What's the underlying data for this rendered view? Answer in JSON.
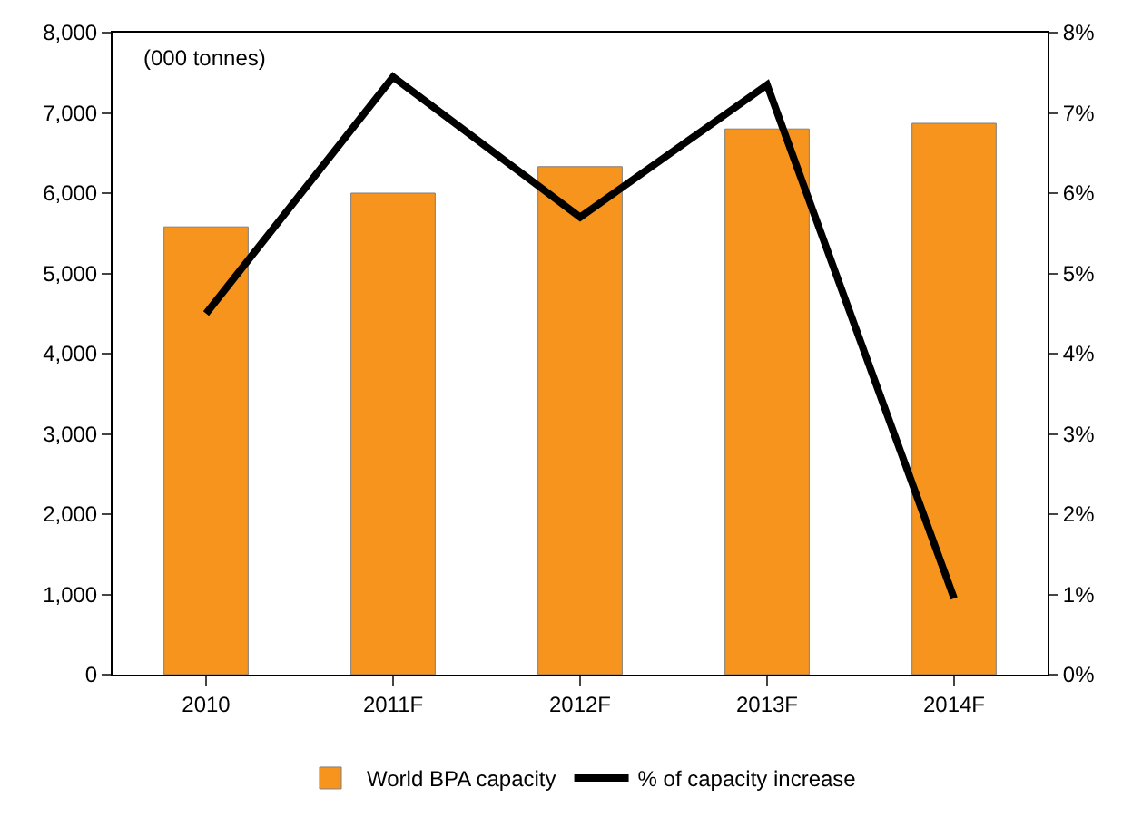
{
  "chart_data": {
    "type": "bar",
    "categories": [
      "2010",
      "2011F",
      "2012F",
      "2013F",
      "2014F"
    ],
    "series": [
      {
        "name": "World BPA capacity",
        "color": "#f7941d",
        "values": [
          5580,
          6000,
          6330,
          6800,
          6870
        ]
      },
      {
        "name": "% of capacity increase",
        "type": "line",
        "axis": "y2",
        "color": "#000000",
        "values": [
          4.5,
          7.45,
          5.7,
          7.35,
          0.95
        ]
      }
    ],
    "ylim": [
      0,
      8000
    ],
    "yticks": [
      0,
      {
        "value": 1000,
        "label": "1,000"
      },
      {
        "value": 2000,
        "label": "2,000"
      },
      {
        "value": 3000,
        "label": "3,000"
      },
      {
        "value": 4000,
        "label": "4,000"
      },
      {
        "value": 5000,
        "label": "5,000"
      },
      {
        "value": 6000,
        "label": "6,000"
      },
      {
        "value": 7000,
        "label": "7,000"
      },
      {
        "value": 8000,
        "label": "8,000"
      }
    ],
    "y2lim": [
      0,
      8
    ],
    "y2ticks": [
      {
        "value": 0,
        "label": "0%"
      },
      {
        "value": 1,
        "label": "1%"
      },
      {
        "value": 2,
        "label": "2%"
      },
      {
        "value": 3,
        "label": "3%"
      },
      {
        "value": 4,
        "label": "4%"
      },
      {
        "value": 5,
        "label": "5%"
      },
      {
        "value": 6,
        "label": "6%"
      },
      {
        "value": 7,
        "label": "7%"
      },
      {
        "value": 8,
        "label": "8%"
      }
    ],
    "annotations": [
      "(000 tonnes)"
    ],
    "legend": "bottom",
    "marker": "none",
    "line_style": "solid"
  }
}
